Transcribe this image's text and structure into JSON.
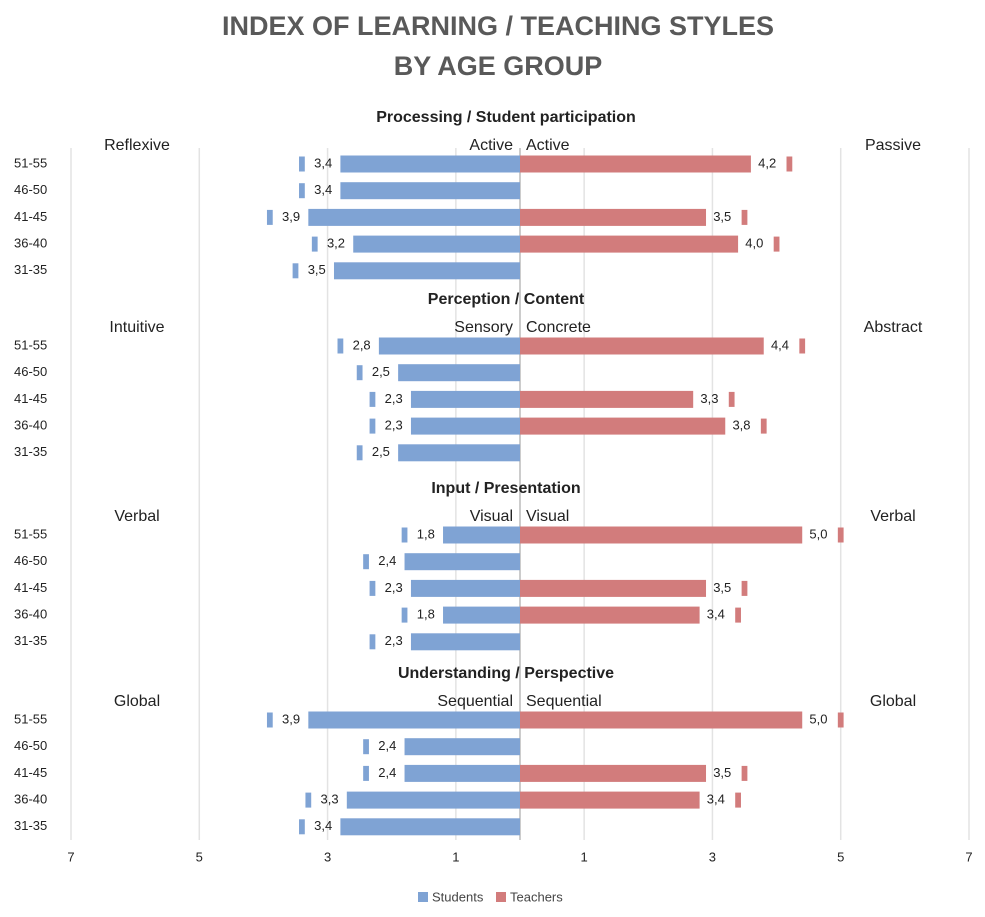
{
  "chart_data": {
    "type": "butterfly",
    "title_lines": [
      "INDEX OF LEARNING / TEACHING STYLES",
      "BY AGE GROUP"
    ],
    "legend": [
      {
        "name": "Students",
        "color": "#7fa3d4"
      },
      {
        "name": "Teachers",
        "color": "#d27c7c"
      }
    ],
    "xlim": [
      0,
      7
    ],
    "xticks": [
      1,
      3,
      5,
      7
    ],
    "grid": true,
    "panels": [
      {
        "title": "Processing / Student participation",
        "left_pole": "Reflexive",
        "left_center": "Active",
        "right_center": "Active",
        "right_pole": "Passive",
        "categories": [
          "51-55",
          "46-50",
          "41-45",
          "36-40",
          "31-35"
        ],
        "series": [
          {
            "values": [
              3.4,
              3.4,
              3.9,
              3.2,
              3.5
            ],
            "value_labels": [
              "3,4",
              "3,4",
              "3,9",
              "3,2",
              "3,5"
            ]
          },
          {
            "values": [
              4.2,
              null,
              3.5,
              4.0,
              null
            ],
            "value_labels": [
              "4,2",
              null,
              "3,5",
              "4,0",
              null
            ]
          }
        ]
      },
      {
        "title": "Perception / Content",
        "left_pole": "Intuitive",
        "left_center": "Sensory",
        "right_center": "Concrete",
        "right_pole": "Abstract",
        "categories": [
          "51-55",
          "46-50",
          "41-45",
          "36-40",
          "31-35"
        ],
        "series": [
          {
            "values": [
              2.8,
              2.5,
              2.3,
              2.3,
              2.5
            ],
            "value_labels": [
              "2,8",
              "2,5",
              "2,3",
              "2,3",
              "2,5"
            ]
          },
          {
            "values": [
              4.4,
              null,
              3.3,
              3.8,
              null
            ],
            "value_labels": [
              "4,4",
              null,
              "3,3",
              "3,8",
              null
            ]
          }
        ]
      },
      {
        "title": "Input / Presentation",
        "left_pole": "Verbal",
        "left_center": "Visual",
        "right_center": "Visual",
        "right_pole": "Verbal",
        "categories": [
          "51-55",
          "46-50",
          "41-45",
          "36-40",
          "31-35"
        ],
        "series": [
          {
            "values": [
              1.8,
              2.4,
              2.3,
              1.8,
              2.3
            ],
            "value_labels": [
              "1,8",
              "2,4",
              "2,3",
              "1,8",
              "2,3"
            ]
          },
          {
            "values": [
              5.0,
              null,
              3.5,
              3.4,
              null
            ],
            "value_labels": [
              "5,0",
              null,
              "3,5",
              "3,4",
              null
            ]
          }
        ]
      },
      {
        "title": "Understanding / Perspective",
        "left_pole": "Global",
        "left_center": "Sequential",
        "right_center": "Sequential",
        "right_pole": "Global",
        "categories": [
          "51-55",
          "46-50",
          "41-45",
          "36-40",
          "31-35"
        ],
        "series": [
          {
            "values": [
              3.9,
              2.4,
              2.4,
              3.3,
              3.4
            ],
            "value_labels": [
              "3,9",
              "2,4",
              "2,4",
              "3,3",
              "3,4"
            ]
          },
          {
            "values": [
              5.0,
              null,
              3.5,
              3.4,
              null
            ],
            "value_labels": [
              "5,0",
              null,
              "3,5",
              "3,4",
              null
            ]
          }
        ]
      }
    ]
  }
}
